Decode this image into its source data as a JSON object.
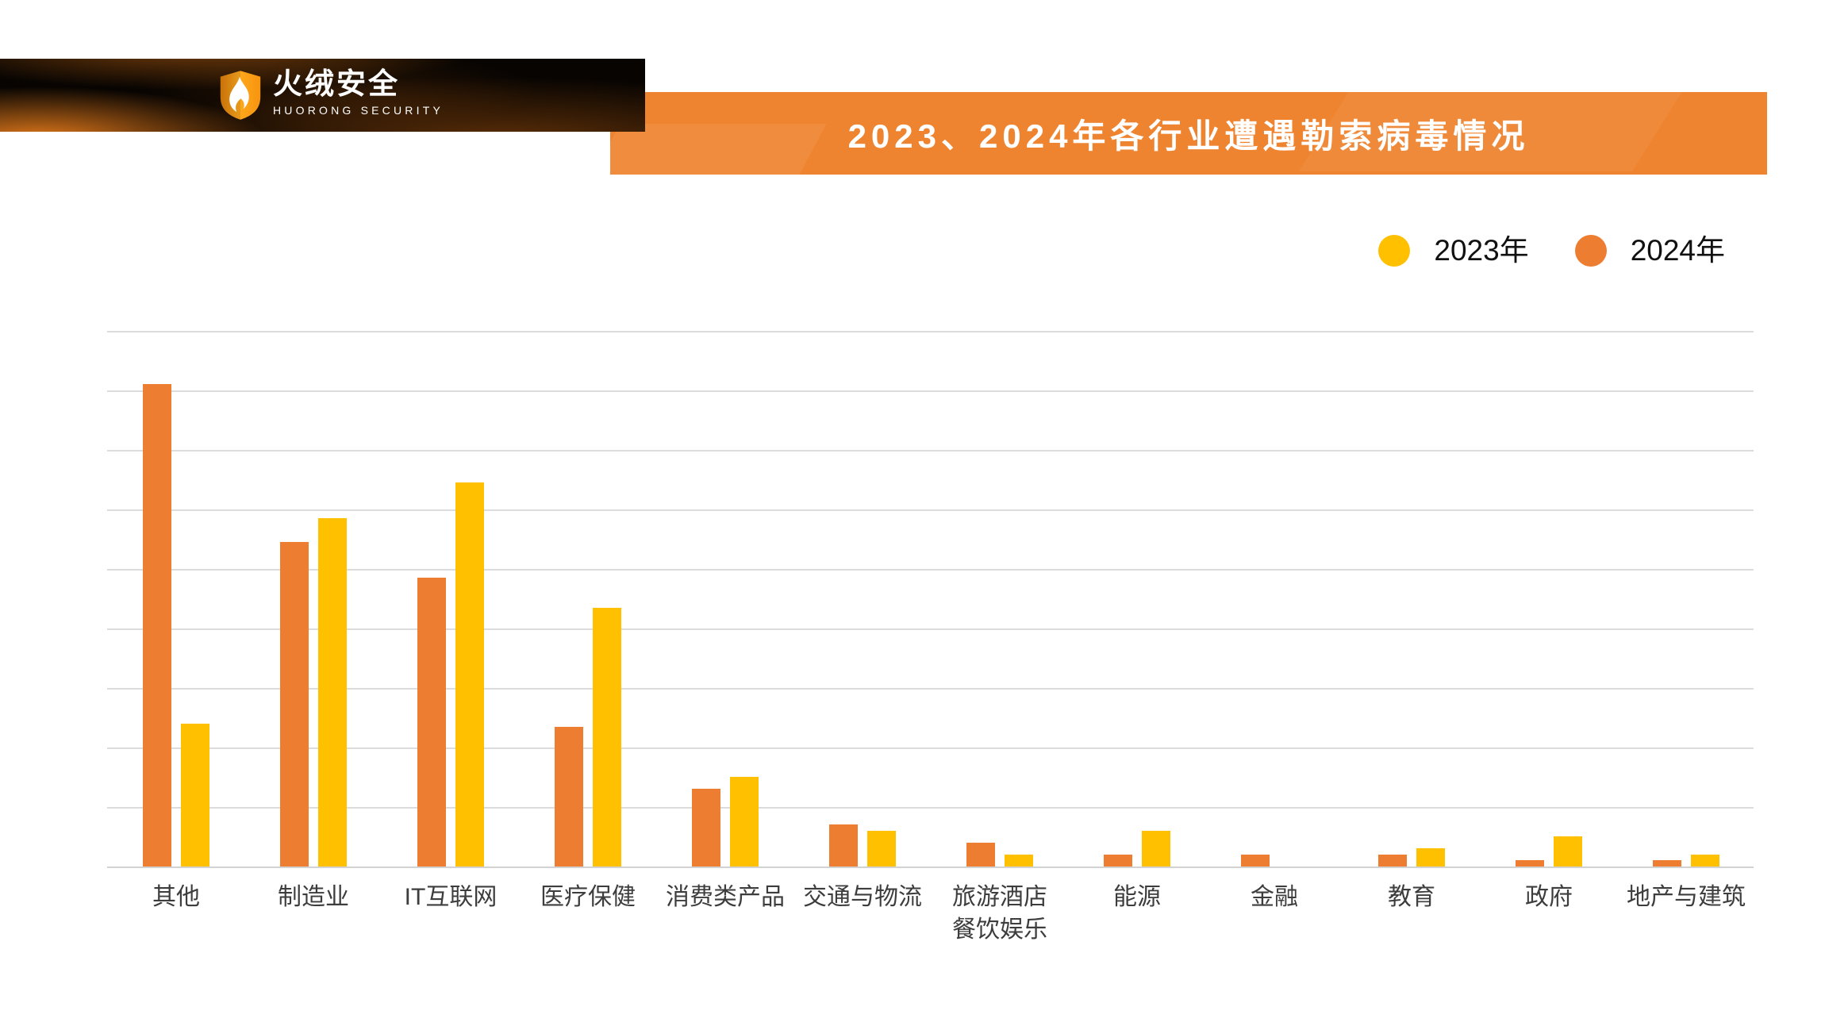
{
  "title": "2023、2024年各行业遭遇勒索病毒情况",
  "logo": {
    "name_cn": "火绒安全",
    "name_en": "HUORONG SECURITY"
  },
  "colors": {
    "banner_orange": "#EF8430",
    "bar_yellow_2023": "#FFC000",
    "bar_orange_2024": "#ED7D31",
    "gridline": "#DCDCDC",
    "banner_black": "#070402",
    "title_text": "#FFFFFF",
    "axis_label_text": "#3D3D3D"
  },
  "legend": {
    "items": [
      {
        "label": "2023年",
        "color": "#FFC000"
      },
      {
        "label": "2024年",
        "color": "#ED7D31"
      }
    ]
  },
  "chart_data": {
    "type": "bar",
    "title": "2023、2024年各行业遭遇勒索病毒情况",
    "categories": [
      "其他",
      "制造业",
      "IT互联网",
      "医疗保健",
      "消费类产品",
      "交通与物流",
      "旅游酒店\n餐饮娱乐",
      "能源",
      "金融",
      "教育",
      "政府",
      "地产与建筑"
    ],
    "series": [
      {
        "name": "2023年",
        "color": "#FFC000",
        "values": [
          2.4,
          5.85,
          6.45,
          4.35,
          1.5,
          0.6,
          0.2,
          0.6,
          0,
          0.3,
          0.5,
          0.2
        ]
      },
      {
        "name": "2024年",
        "color": "#ED7D31",
        "values": [
          8.1,
          5.45,
          4.85,
          2.35,
          1.3,
          0.7,
          0.4,
          0.2,
          0.2,
          0.2,
          0.1,
          0.1
        ]
      }
    ],
    "bar_order_in_pair": [
      "2024年",
      "2023年"
    ],
    "xlabel": "",
    "ylabel": "",
    "ylim": [
      0,
      9
    ],
    "y_tick_labels_shown": false,
    "gridlines": "horizontal, 9 equal intervals, light gray",
    "legend_position": "top-right",
    "values_note": "units are relative gridline intervals; no numeric y-axis labels are shown in the image"
  }
}
